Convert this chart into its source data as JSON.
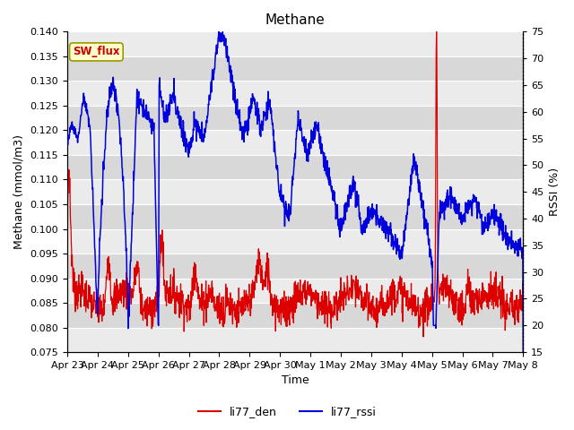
{
  "title": "Methane",
  "xlabel": "Time",
  "ylabel_left": "Methane (mmol/m3)",
  "ylabel_right": "RSSI (%)",
  "ylim_left": [
    0.075,
    0.14
  ],
  "ylim_right": [
    15,
    75
  ],
  "yticks_left": [
    0.075,
    0.08,
    0.085,
    0.09,
    0.095,
    0.1,
    0.105,
    0.11,
    0.115,
    0.12,
    0.125,
    0.13,
    0.135,
    0.14
  ],
  "yticks_right": [
    15,
    20,
    25,
    30,
    35,
    40,
    45,
    50,
    55,
    60,
    65,
    70,
    75
  ],
  "xtick_labels": [
    "Apr 23",
    "Apr 24",
    "Apr 25",
    "Apr 26",
    "Apr 27",
    "Apr 28",
    "Apr 29",
    "Apr 30",
    "May 1",
    "May 2",
    "May 3",
    "May 4",
    "May 5",
    "May 6",
    "May 7",
    "May 8"
  ],
  "color_den": "#dd0000",
  "color_rssi": "#0000dd",
  "legend_label_den": "li77_den",
  "legend_label_rssi": "li77_rssi",
  "annotation_label": "SW_flux",
  "bg_light": "#ebebeb",
  "bg_dark": "#d8d8d8",
  "grid_color": "#ffffff",
  "title_fontsize": 11,
  "axis_fontsize": 9,
  "tick_fontsize": 8
}
